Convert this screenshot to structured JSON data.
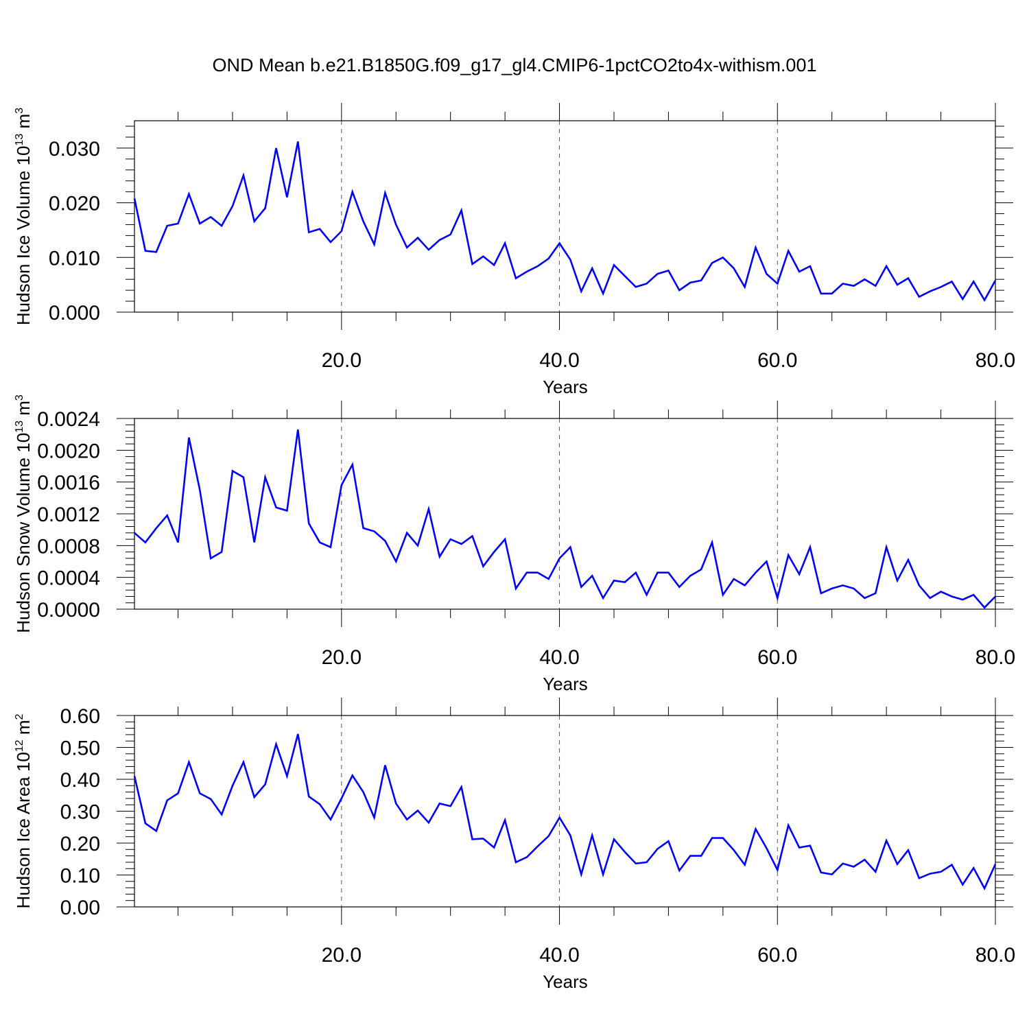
{
  "figure_title": "OND Mean b.e21.B1850G.f09_g17_gl4.CMIP6-1pctCO2to4x-withism.001",
  "colors": {
    "line": "#0000ff",
    "axes": "#000000",
    "grid": "#555555",
    "background": "#ffffff"
  },
  "chart_data": [
    {
      "type": "line",
      "title": "OND Mean b.e21.B1850G.f09_g17_gl4.CMIP6-1pctCO2to4x-withism.001",
      "xlabel": "Years",
      "ylabel": {
        "main": "Hudson Ice Volume 10",
        "sup": "13",
        "unit": " m",
        "unit_sup": "3"
      },
      "xlim": [
        1,
        80
      ],
      "ylim": [
        0,
        0.035
      ],
      "xticks": [
        20,
        40,
        60,
        80
      ],
      "xtick_labels": [
        "20.0",
        "40.0",
        "60.0",
        "80.0"
      ],
      "yticks": [
        0.0,
        0.01,
        0.02,
        0.03
      ],
      "ytick_labels": [
        "0.000",
        "0.010",
        "0.020",
        "0.030"
      ],
      "grid": "vertical dashed at major x ticks",
      "series": [
        {
          "x": [
            1,
            2,
            3,
            4,
            5,
            6,
            7,
            8,
            9,
            10,
            11,
            12,
            13,
            14,
            15,
            16,
            17,
            18,
            19,
            20,
            21,
            22,
            23,
            24,
            25,
            26,
            27,
            28,
            29,
            30,
            31,
            32,
            33,
            34,
            35,
            36,
            37,
            38,
            39,
            40,
            41,
            42,
            43,
            44,
            45,
            46,
            47,
            48,
            49,
            50,
            51,
            52,
            53,
            54,
            55,
            56,
            57,
            58,
            59,
            60,
            61,
            62,
            63,
            64,
            65,
            66,
            67,
            68,
            69,
            70,
            71,
            72,
            73,
            74,
            75,
            76,
            77,
            78,
            79,
            80
          ],
          "values": [
            0.0208,
            0.0112,
            0.011,
            0.0158,
            0.0162,
            0.0216,
            0.0162,
            0.0174,
            0.0158,
            0.0194,
            0.025,
            0.0166,
            0.019,
            0.03,
            0.021,
            0.0312,
            0.0146,
            0.0152,
            0.0128,
            0.0148,
            0.022,
            0.0166,
            0.0124,
            0.0218,
            0.016,
            0.0118,
            0.0136,
            0.0114,
            0.0132,
            0.0142,
            0.0186,
            0.0088,
            0.0102,
            0.0086,
            0.0126,
            0.0062,
            0.0074,
            0.0084,
            0.0098,
            0.0126,
            0.0096,
            0.0038,
            0.008,
            0.0034,
            0.0086,
            0.0066,
            0.0046,
            0.0052,
            0.007,
            0.0076,
            0.004,
            0.0054,
            0.0058,
            0.009,
            0.01,
            0.008,
            0.0046,
            0.0118,
            0.007,
            0.0052,
            0.0112,
            0.0074,
            0.0084,
            0.0034,
            0.0034,
            0.0052,
            0.0048,
            0.006,
            0.0048,
            0.0084,
            0.005,
            0.0062,
            0.0028,
            0.0038,
            0.0046,
            0.0056,
            0.0024,
            0.0056,
            0.0022,
            0.0058
          ]
        }
      ]
    },
    {
      "type": "line",
      "xlabel": "Years",
      "ylabel": {
        "main": "Hudson Snow Volume 10",
        "sup": "13",
        "unit": " m",
        "unit_sup": "3"
      },
      "xlim": [
        1,
        80
      ],
      "ylim": [
        0,
        0.0024
      ],
      "xticks": [
        20,
        40,
        60,
        80
      ],
      "xtick_labels": [
        "20.0",
        "40.0",
        "60.0",
        "80.0"
      ],
      "yticks": [
        0.0,
        0.0004,
        0.0008,
        0.0012,
        0.0016,
        0.002,
        0.0024
      ],
      "ytick_labels": [
        "0.0000",
        "0.0004",
        "0.0008",
        "0.0012",
        "0.0016",
        "0.0020",
        "0.0024"
      ],
      "grid": "vertical dashed at major x ticks",
      "series": [
        {
          "x": [
            1,
            2,
            3,
            4,
            5,
            6,
            7,
            8,
            9,
            10,
            11,
            12,
            13,
            14,
            15,
            16,
            17,
            18,
            19,
            20,
            21,
            22,
            23,
            24,
            25,
            26,
            27,
            28,
            29,
            30,
            31,
            32,
            33,
            34,
            35,
            36,
            37,
            38,
            39,
            40,
            41,
            42,
            43,
            44,
            45,
            46,
            47,
            48,
            49,
            50,
            51,
            52,
            53,
            54,
            55,
            56,
            57,
            58,
            59,
            60,
            61,
            62,
            63,
            64,
            65,
            66,
            67,
            68,
            69,
            70,
            71,
            72,
            73,
            74,
            75,
            76,
            77,
            78,
            79,
            80
          ],
          "values": [
            0.00096,
            0.00084,
            0.00102,
            0.00118,
            0.00084,
            0.00216,
            0.0015,
            0.00064,
            0.00072,
            0.00174,
            0.00166,
            0.00084,
            0.00166,
            0.00128,
            0.00124,
            0.00226,
            0.00108,
            0.00084,
            0.00078,
            0.00156,
            0.00182,
            0.00102,
            0.00098,
            0.00086,
            0.0006,
            0.00096,
            0.0008,
            0.00126,
            0.00066,
            0.00088,
            0.00082,
            0.00092,
            0.00054,
            0.00072,
            0.00088,
            0.00026,
            0.00046,
            0.00046,
            0.00038,
            0.00064,
            0.00078,
            0.00028,
            0.00042,
            0.00014,
            0.00036,
            0.00034,
            0.00046,
            0.00018,
            0.00046,
            0.00046,
            0.00028,
            0.00042,
            0.0005,
            0.00084,
            0.00018,
            0.00038,
            0.0003,
            0.00046,
            0.0006,
            0.00014,
            0.00068,
            0.00044,
            0.00078,
            0.0002,
            0.00026,
            0.0003,
            0.00026,
            0.00014,
            0.0002,
            0.00078,
            0.00036,
            0.00062,
            0.0003,
            0.00014,
            0.00022,
            0.00016,
            0.00012,
            0.00018,
            2e-05,
            0.00016
          ]
        }
      ]
    },
    {
      "type": "line",
      "xlabel": "Years",
      "ylabel": {
        "main": "Hudson Ice Area 10",
        "sup": "12",
        "unit": " m",
        "unit_sup": "2"
      },
      "xlim": [
        1,
        80
      ],
      "ylim": [
        0,
        0.6
      ],
      "xticks": [
        20,
        40,
        60,
        80
      ],
      "xtick_labels": [
        "20.0",
        "40.0",
        "60.0",
        "80.0"
      ],
      "yticks": [
        0.0,
        0.1,
        0.2,
        0.3,
        0.4,
        0.5,
        0.6
      ],
      "ytick_labels": [
        "0.00",
        "0.10",
        "0.20",
        "0.30",
        "0.40",
        "0.50",
        "0.60"
      ],
      "grid": "vertical dashed at major x ticks",
      "series": [
        {
          "x": [
            1,
            2,
            3,
            4,
            5,
            6,
            7,
            8,
            9,
            10,
            11,
            12,
            13,
            14,
            15,
            16,
            17,
            18,
            19,
            20,
            21,
            22,
            23,
            24,
            25,
            26,
            27,
            28,
            29,
            30,
            31,
            32,
            33,
            34,
            35,
            36,
            37,
            38,
            39,
            40,
            41,
            42,
            43,
            44,
            45,
            46,
            47,
            48,
            49,
            50,
            51,
            52,
            53,
            54,
            55,
            56,
            57,
            58,
            59,
            60,
            61,
            62,
            63,
            64,
            65,
            66,
            67,
            68,
            69,
            70,
            71,
            72,
            73,
            74,
            75,
            76,
            77,
            78,
            79,
            80
          ],
          "values": [
            0.41,
            0.262,
            0.238,
            0.334,
            0.356,
            0.454,
            0.356,
            0.338,
            0.29,
            0.38,
            0.454,
            0.344,
            0.384,
            0.51,
            0.41,
            0.542,
            0.346,
            0.322,
            0.274,
            0.34,
            0.412,
            0.36,
            0.28,
            0.444,
            0.324,
            0.274,
            0.302,
            0.264,
            0.324,
            0.316,
            0.376,
            0.212,
            0.214,
            0.186,
            0.272,
            0.14,
            0.156,
            0.19,
            0.222,
            0.28,
            0.224,
            0.102,
            0.224,
            0.102,
            0.212,
            0.172,
            0.136,
            0.14,
            0.182,
            0.206,
            0.114,
            0.16,
            0.16,
            0.216,
            0.216,
            0.178,
            0.132,
            0.244,
            0.184,
            0.116,
            0.256,
            0.186,
            0.192,
            0.108,
            0.102,
            0.136,
            0.126,
            0.148,
            0.11,
            0.208,
            0.134,
            0.178,
            0.09,
            0.104,
            0.11,
            0.132,
            0.07,
            0.122,
            0.058,
            0.134
          ]
        }
      ]
    }
  ]
}
